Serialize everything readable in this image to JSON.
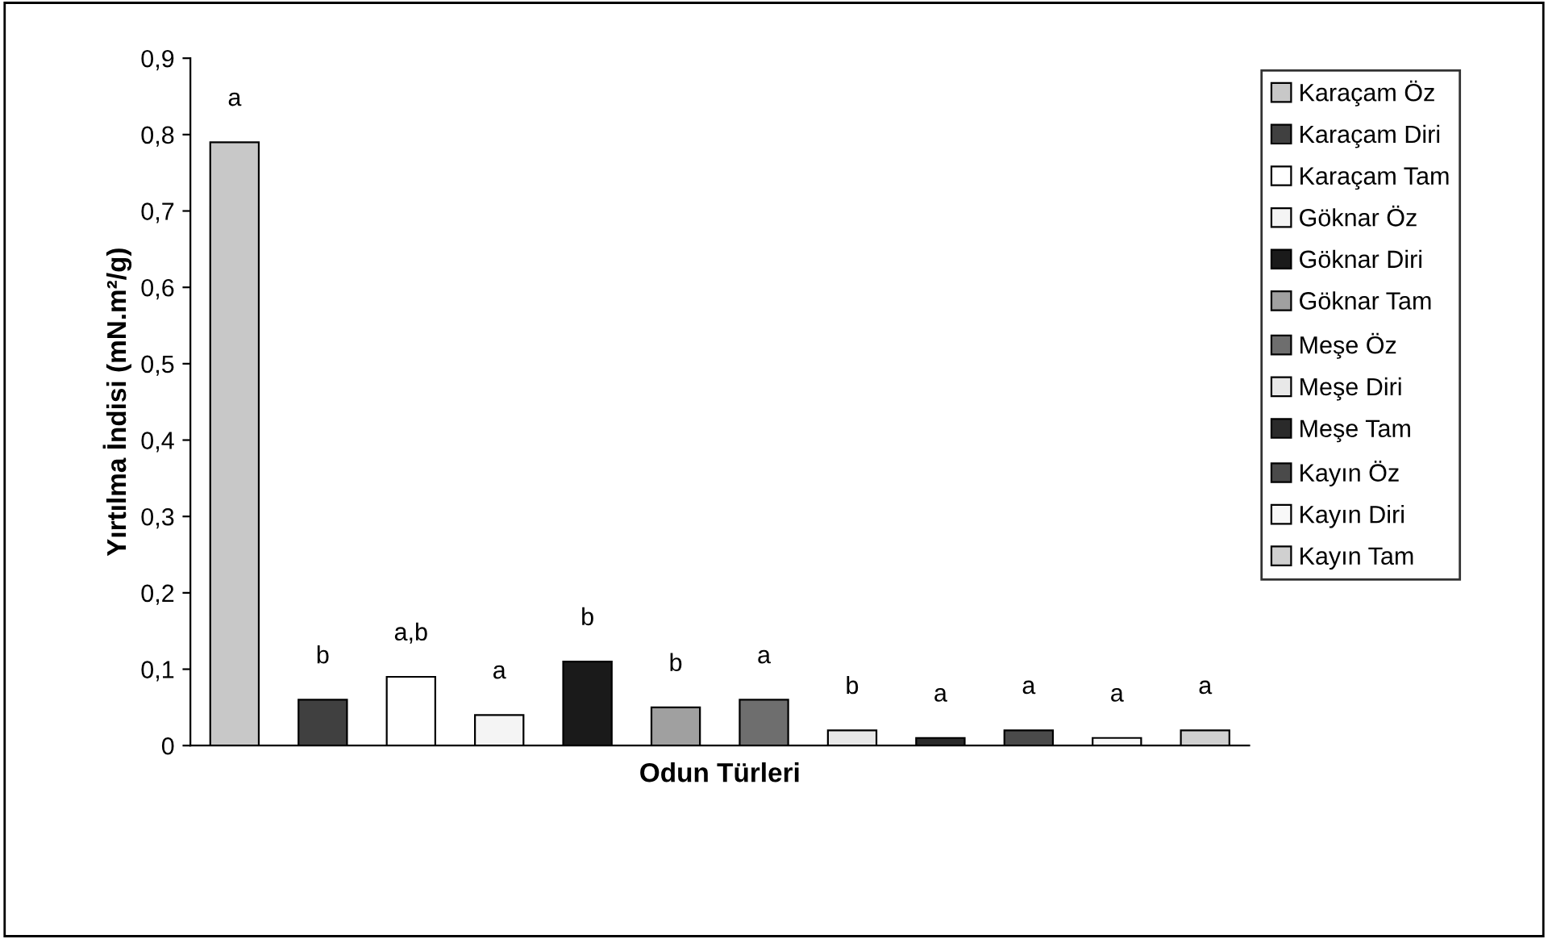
{
  "chart_data": {
    "type": "bar",
    "xlabel": "Odun Türleri",
    "ylabel": "Yırtılma İndisi (mN.m²/g)",
    "categories": [
      null
    ],
    "series": [
      {
        "name": "Karaçam Öz",
        "color": "#c8c8c8",
        "values": [
          0.79
        ],
        "value_labels": [
          "a"
        ]
      },
      {
        "name": "Karaçam Diri",
        "color": "#404040",
        "values": [
          0.06
        ],
        "value_labels": [
          "b"
        ]
      },
      {
        "name": "Karaçam Tam",
        "color": "#ffffff",
        "values": [
          0.09
        ],
        "value_labels": [
          "a,b"
        ]
      },
      {
        "name": "Göknar Öz",
        "color": "#f4f4f4",
        "values": [
          0.04
        ],
        "value_labels": [
          "a"
        ]
      },
      {
        "name": "Göknar Diri",
        "color": "#1a1a1a",
        "values": [
          0.11
        ],
        "value_labels": [
          "b"
        ]
      },
      {
        "name": "Göknar Tam",
        "color": "#a0a0a0",
        "values": [
          0.05
        ],
        "value_labels": [
          "b"
        ]
      },
      {
        "name": "Meşe Öz",
        "color": "#6e6e6e",
        "values": [
          0.06
        ],
        "value_labels": [
          "a"
        ]
      },
      {
        "name": "Meşe Diri",
        "color": "#e8e8e8",
        "values": [
          0.02
        ],
        "value_labels": [
          "b"
        ]
      },
      {
        "name": "Meşe Tam",
        "color": "#2a2a2a",
        "values": [
          0.01
        ],
        "value_labels": [
          "a"
        ]
      },
      {
        "name": "Kayın Öz",
        "color": "#4a4a4a",
        "values": [
          0.02
        ],
        "value_labels": [
          "a"
        ]
      },
      {
        "name": "Kayın Diri",
        "color": "#f8f8f8",
        "values": [
          0.01
        ],
        "value_labels": [
          "a"
        ]
      },
      {
        "name": "Kayın Tam",
        "color": "#d0d0d0",
        "values": [
          0.02
        ],
        "value_labels": [
          "a"
        ]
      }
    ],
    "ylim": [
      0,
      0.9
    ],
    "yticks": [
      {
        "value": 0,
        "label": "0"
      },
      {
        "value": 0.1,
        "label": "0,1"
      },
      {
        "value": 0.2,
        "label": "0,2"
      },
      {
        "value": 0.3,
        "label": "0,3"
      },
      {
        "value": 0.4,
        "label": "0,4"
      },
      {
        "value": 0.5,
        "label": "0,5"
      },
      {
        "value": 0.6,
        "label": "0,6"
      },
      {
        "value": 0.7,
        "label": "0,7"
      },
      {
        "value": 0.8,
        "label": "0,8"
      },
      {
        "value": 0.9,
        "label": "0,9"
      }
    ],
    "grid": false,
    "legend": "right"
  }
}
